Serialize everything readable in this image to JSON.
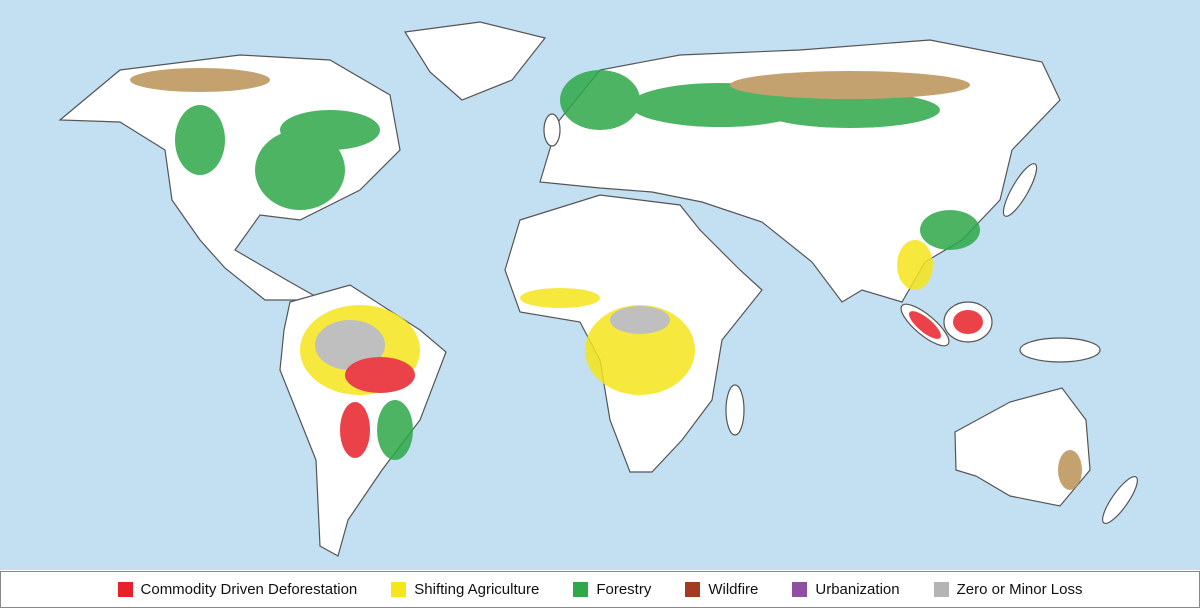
{
  "legend": {
    "items": [
      {
        "label": "Commodity Driven Deforestation",
        "color": "#e8202a"
      },
      {
        "label": "Shifting Agriculture",
        "color": "#f5e51b"
      },
      {
        "label": "Forestry",
        "color": "#2ea84a"
      },
      {
        "label": "Wildfire",
        "color": "#a23b22"
      },
      {
        "label": "Urbanization",
        "color": "#8e4fa3"
      },
      {
        "label": "Zero or Minor Loss",
        "color": "#b4b4b4"
      }
    ]
  }
}
